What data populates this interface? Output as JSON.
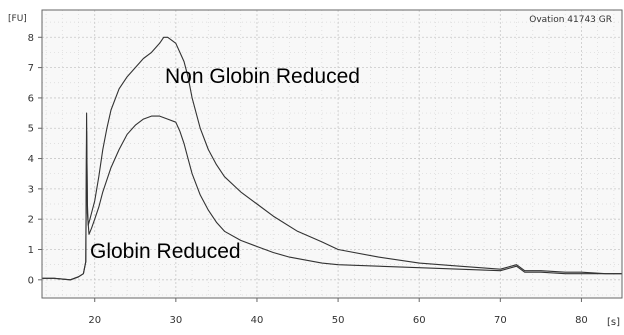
{
  "chart_data": {
    "type": "line",
    "title": "",
    "ylabel": "[FU]",
    "xlabel": "[s]",
    "sample_label": "Ovation 41743 GR",
    "xlim": [
      13.5,
      85
    ],
    "ylim": [
      -0.6,
      8.9
    ],
    "x_ticks": [
      20,
      30,
      40,
      50,
      60,
      70,
      80
    ],
    "y_ticks": [
      0,
      1,
      2,
      3,
      4,
      5,
      6,
      7,
      8
    ],
    "grid": true,
    "colors": {
      "plot_background": "#f8f8f8",
      "trace": "#333333",
      "grid": "#d8d8d8",
      "frame": "#666666"
    },
    "annotations": [
      {
        "text": "Non Globin Reduced",
        "x": 29.3,
        "y": 7.1
      },
      {
        "text": "Globin Reduced",
        "x": 19.2,
        "y": 0.9
      }
    ],
    "series": [
      {
        "x": [
          13.5,
          15,
          17,
          18,
          18.6,
          18.9,
          19.0,
          19.1,
          19.2,
          19.4,
          19.6,
          20,
          20.5,
          21,
          21.5,
          22,
          23,
          24,
          25,
          26,
          27,
          28,
          28.5,
          29,
          29.5,
          30,
          30.5,
          31,
          31.5,
          32,
          33,
          34,
          35,
          36,
          38,
          40,
          42,
          45,
          48,
          50,
          55,
          60,
          65,
          70,
          72,
          73,
          75,
          78,
          80,
          83,
          85
        ],
        "y": [
          0.05,
          0.05,
          0.0,
          0.1,
          0.2,
          0.6,
          4.9,
          2.5,
          1.8,
          2.0,
          2.2,
          2.6,
          3.4,
          4.3,
          5.0,
          5.6,
          6.3,
          6.7,
          7.0,
          7.3,
          7.5,
          7.8,
          8.0,
          8.0,
          7.9,
          7.8,
          7.5,
          7.2,
          6.7,
          6.0,
          5.0,
          4.3,
          3.8,
          3.4,
          2.9,
          2.5,
          2.1,
          1.6,
          1.25,
          1.0,
          0.75,
          0.55,
          0.45,
          0.35,
          0.5,
          0.3,
          0.3,
          0.25,
          0.25,
          0.2,
          0.2
        ]
      },
      {
        "x": [
          13.5,
          15,
          17,
          18,
          18.6,
          18.9,
          19.0,
          19.1,
          19.3,
          19.6,
          20,
          20.5,
          21,
          22,
          23,
          24,
          25,
          26,
          27,
          28,
          29,
          30,
          30.5,
          31,
          31.5,
          32,
          33,
          34,
          35,
          36,
          38,
          40,
          42,
          44,
          46,
          48,
          50,
          55,
          60,
          65,
          70,
          72,
          73,
          75,
          78,
          80,
          83,
          85
        ],
        "y": [
          0.05,
          0.05,
          0.0,
          0.1,
          0.2,
          0.6,
          5.5,
          2.2,
          1.5,
          1.7,
          2.0,
          2.4,
          2.9,
          3.7,
          4.3,
          4.8,
          5.1,
          5.3,
          5.4,
          5.4,
          5.3,
          5.2,
          4.9,
          4.5,
          4.0,
          3.5,
          2.8,
          2.3,
          1.9,
          1.6,
          1.3,
          1.1,
          0.9,
          0.75,
          0.65,
          0.55,
          0.5,
          0.45,
          0.4,
          0.35,
          0.3,
          0.45,
          0.25,
          0.25,
          0.2,
          0.2,
          0.2,
          0.2
        ]
      }
    ]
  }
}
